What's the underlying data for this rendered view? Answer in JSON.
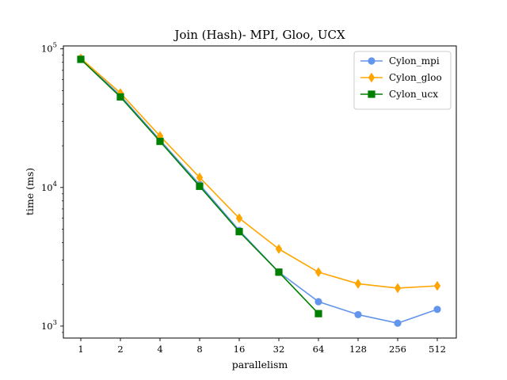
{
  "chart_data": {
    "type": "line",
    "title": "Join (Hash)- MPI, Gloo, UCX",
    "xlabel": "parallelism",
    "ylabel": "time (ms)",
    "x_scale": "log2",
    "y_scale": "log10",
    "x_ticks": [
      1,
      2,
      4,
      8,
      16,
      32,
      64,
      128,
      256,
      512
    ],
    "y_ticks": [
      {
        "value": 1000,
        "base": "10",
        "exp": "3"
      },
      {
        "value": 10000,
        "base": "10",
        "exp": "4"
      },
      {
        "value": 100000,
        "base": "10",
        "exp": "5"
      }
    ],
    "ylim": [
      820,
      105000
    ],
    "legend_position": "top-right",
    "grid": false,
    "series": [
      {
        "name": "Cylon_mpi",
        "color": "#6495ED",
        "marker": "circle",
        "x": [
          1,
          2,
          4,
          8,
          16,
          32,
          64,
          128,
          256,
          512
        ],
        "values": [
          85000,
          46000,
          22000,
          10500,
          4900,
          2450,
          1500,
          1210,
          1050,
          1320
        ]
      },
      {
        "name": "Cylon_gloo",
        "color": "#FFA500",
        "marker": "diamond",
        "x": [
          1,
          2,
          4,
          8,
          16,
          32,
          64,
          128,
          256,
          512
        ],
        "values": [
          85500,
          48000,
          23500,
          11800,
          6000,
          3600,
          2450,
          2020,
          1880,
          1950
        ]
      },
      {
        "name": "Cylon_ucx",
        "color": "#008000",
        "marker": "square",
        "x": [
          1,
          2,
          4,
          8,
          16,
          32,
          64
        ],
        "values": [
          84000,
          45000,
          21500,
          10200,
          4800,
          2450,
          1230
        ]
      }
    ]
  }
}
